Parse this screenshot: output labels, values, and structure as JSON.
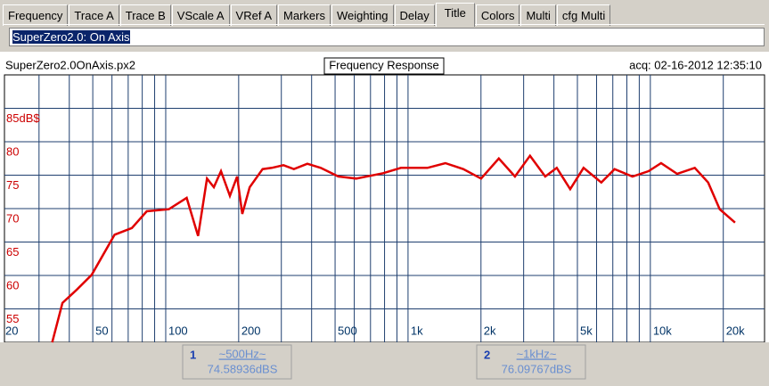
{
  "tabs": [
    "Frequency",
    "Trace A",
    "Trace B",
    "VScale A",
    "VRef A",
    "Markers",
    "Weighting",
    "Delay",
    "Title",
    "Colors",
    "Multi",
    "cfg Multi"
  ],
  "selected_tab": "Title",
  "title_input": "SuperZero2.0: On Axis",
  "chart_data": {
    "type": "line",
    "title": "Frequency Response",
    "file": "SuperZero2.0OnAxis.px2",
    "acquired": "acq: 02-16-2012 12:35:10",
    "x": [
      34,
      37.5,
      43,
      49.5,
      61.5,
      72.5,
      83.5,
      103,
      122,
      136,
      148,
      158,
      169,
      184,
      197,
      207,
      222,
      251,
      274,
      306,
      338,
      384,
      436,
      516,
      611,
      789,
      935,
      1203,
      1426,
      1690,
      2002,
      2370,
      2763,
      3188,
      3685,
      4108,
      4668,
      5303,
      6273,
      7119,
      8441,
      9828,
      11072,
      12895,
      15254,
      17320,
      19340,
      22358
    ],
    "series": [
      {
        "color": "#e00000",
        "values": [
          50,
          55.9,
          57.9,
          60.1,
          66.1,
          67.1,
          69.6,
          69.9,
          71.6,
          65.9,
          74.5,
          73.2,
          75.6,
          71.9,
          74.8,
          69.2,
          73.2,
          75.9,
          76.1,
          76.5,
          75.9,
          76.7,
          76.1,
          74.8,
          74.5,
          75.3,
          76.1,
          76.1,
          76.8,
          75.9,
          74.5,
          77.5,
          74.8,
          77.9,
          74.8,
          76.1,
          72.9,
          76.1,
          73.9,
          75.9,
          74.8,
          75.6,
          76.8,
          75.2,
          76.1,
          73.9,
          69.9,
          67.9
        ]
      }
    ],
    "xlim": [
      21.6,
      29600
    ],
    "xscale": "log",
    "xticks": [
      20,
      50,
      100,
      200,
      500,
      {
        "value": 1000,
        "label": "1k"
      },
      {
        "value": 2000,
        "label": "2k"
      },
      {
        "value": 5000,
        "label": "5k"
      },
      {
        "value": 10000,
        "label": "10k"
      },
      {
        "value": 20000,
        "label": "20k"
      }
    ],
    "xminor": [
      30,
      40,
      60,
      70,
      80,
      90,
      300,
      400,
      600,
      700,
      800,
      900,
      3000,
      4000,
      6000,
      7000,
      8000,
      9000
    ],
    "ylim": [
      50,
      90
    ],
    "yticks": [
      55,
      60,
      65,
      70,
      75,
      80,
      {
        "value": 85,
        "label": "85dB$"
      }
    ],
    "grid": true,
    "markers": [
      {
        "index": "1",
        "label": "~500Hz~",
        "reading": "74.58936dBS"
      },
      {
        "index": "2",
        "label": "~1kHz~",
        "reading": "76.09767dBS"
      }
    ]
  }
}
